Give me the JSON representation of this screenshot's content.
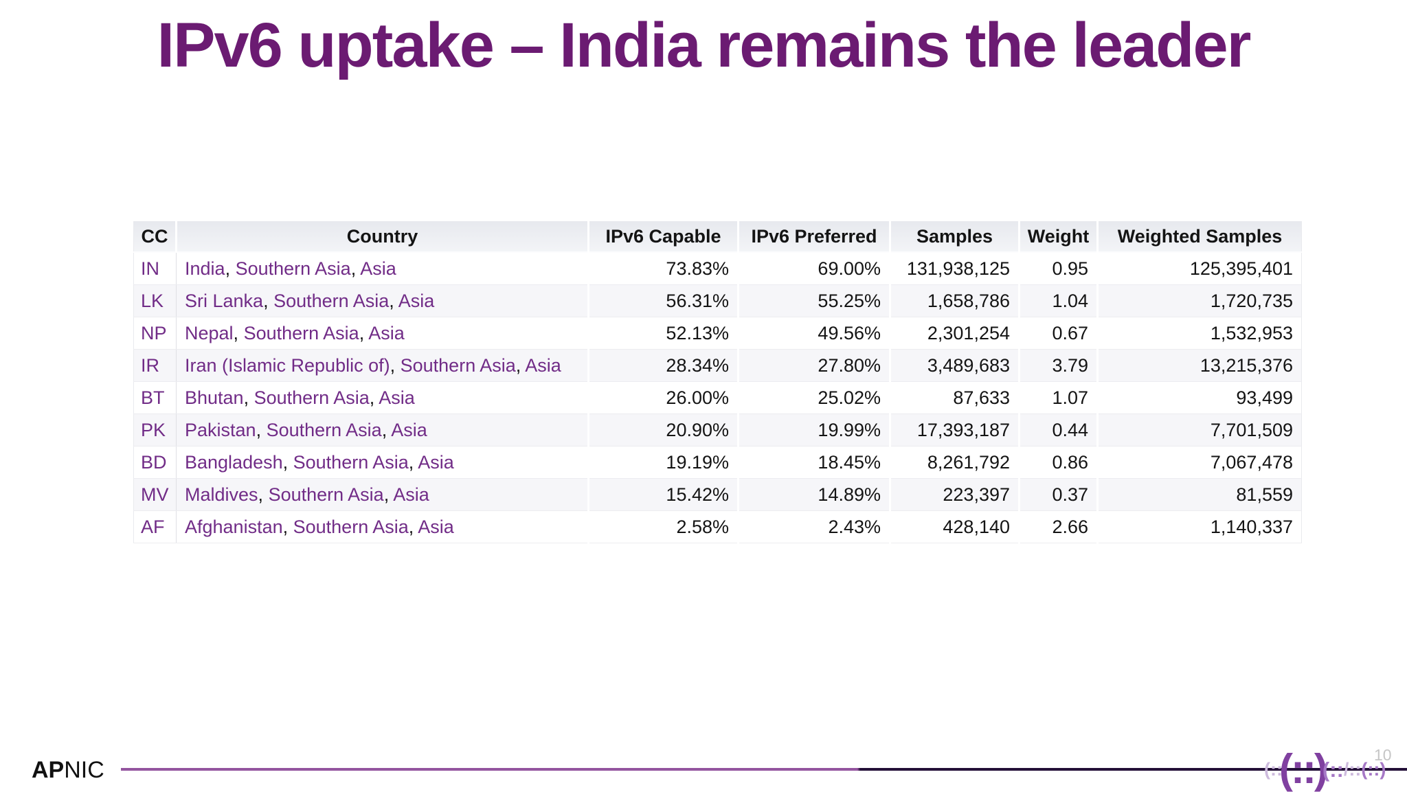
{
  "slide": {
    "title": "IPv6 uptake – India remains the leader"
  },
  "table": {
    "columns": [
      "CC",
      "Country",
      "IPv6 Capable",
      "IPv6 Preferred",
      "Samples",
      "Weight",
      "Weighted Samples"
    ],
    "rows": [
      {
        "cc": "IN",
        "country_links": [
          "India",
          "Southern Asia",
          "Asia"
        ],
        "ipv6_capable": "73.83%",
        "ipv6_preferred": "69.00%",
        "samples": "131,938,125",
        "weight": "0.95",
        "weighted_samples": "125,395,401"
      },
      {
        "cc": "LK",
        "country_links": [
          "Sri Lanka",
          "Southern Asia",
          "Asia"
        ],
        "ipv6_capable": "56.31%",
        "ipv6_preferred": "55.25%",
        "samples": "1,658,786",
        "weight": "1.04",
        "weighted_samples": "1,720,735"
      },
      {
        "cc": "NP",
        "country_links": [
          "Nepal",
          "Southern Asia",
          "Asia"
        ],
        "ipv6_capable": "52.13%",
        "ipv6_preferred": "49.56%",
        "samples": "2,301,254",
        "weight": "0.67",
        "weighted_samples": "1,532,953"
      },
      {
        "cc": "IR",
        "country_links": [
          "Iran (Islamic Republic of)",
          "Southern Asia",
          "Asia"
        ],
        "ipv6_capable": "28.34%",
        "ipv6_preferred": "27.80%",
        "samples": "3,489,683",
        "weight": "3.79",
        "weighted_samples": "13,215,376"
      },
      {
        "cc": "BT",
        "country_links": [
          "Bhutan",
          "Southern Asia",
          "Asia"
        ],
        "ipv6_capable": "26.00%",
        "ipv6_preferred": "25.02%",
        "samples": "87,633",
        "weight": "1.07",
        "weighted_samples": "93,499"
      },
      {
        "cc": "PK",
        "country_links": [
          "Pakistan",
          "Southern Asia",
          "Asia"
        ],
        "ipv6_capable": "20.90%",
        "ipv6_preferred": "19.99%",
        "samples": "17,393,187",
        "weight": "0.44",
        "weighted_samples": "7,701,509"
      },
      {
        "cc": "BD",
        "country_links": [
          "Bangladesh",
          "Southern Asia",
          "Asia"
        ],
        "ipv6_capable": "19.19%",
        "ipv6_preferred": "18.45%",
        "samples": "8,261,792",
        "weight": "0.86",
        "weighted_samples": "7,067,478"
      },
      {
        "cc": "MV",
        "country_links": [
          "Maldives",
          "Southern Asia",
          "Asia"
        ],
        "ipv6_capable": "15.42%",
        "ipv6_preferred": "14.89%",
        "samples": "223,397",
        "weight": "0.37",
        "weighted_samples": "81,559"
      },
      {
        "cc": "AF",
        "country_links": [
          "Afghanistan",
          "Southern Asia",
          "Asia"
        ],
        "ipv6_capable": "2.58%",
        "ipv6_preferred": "2.43%",
        "samples": "428,140",
        "weight": "2.66",
        "weighted_samples": "1,140,337"
      }
    ],
    "country_separator": ", "
  },
  "footer": {
    "brand_bold": "AP",
    "brand_rest": "NIC",
    "page_number": "10",
    "logo_glyphs": [
      {
        "text": "(::",
        "cls": "g-light g-sm"
      },
      {
        "text": "(::)",
        "cls": "g-dark g-lg g-tight"
      },
      {
        "text": "(::",
        "cls": "g-mid g-md g-tight"
      },
      {
        "text": "/::",
        "cls": "g-light g-sm"
      },
      {
        "text": "(::)",
        "cls": "g-mid g-sm"
      }
    ]
  },
  "colors": {
    "title": "#6b1b72",
    "link_purple": "#712c87",
    "header_bg": "#eceef2",
    "stripe_bg": "#f6f6f9",
    "line_light": "#94559f",
    "line_dark": "#241038",
    "page_number_gray": "#c6c6c6"
  }
}
